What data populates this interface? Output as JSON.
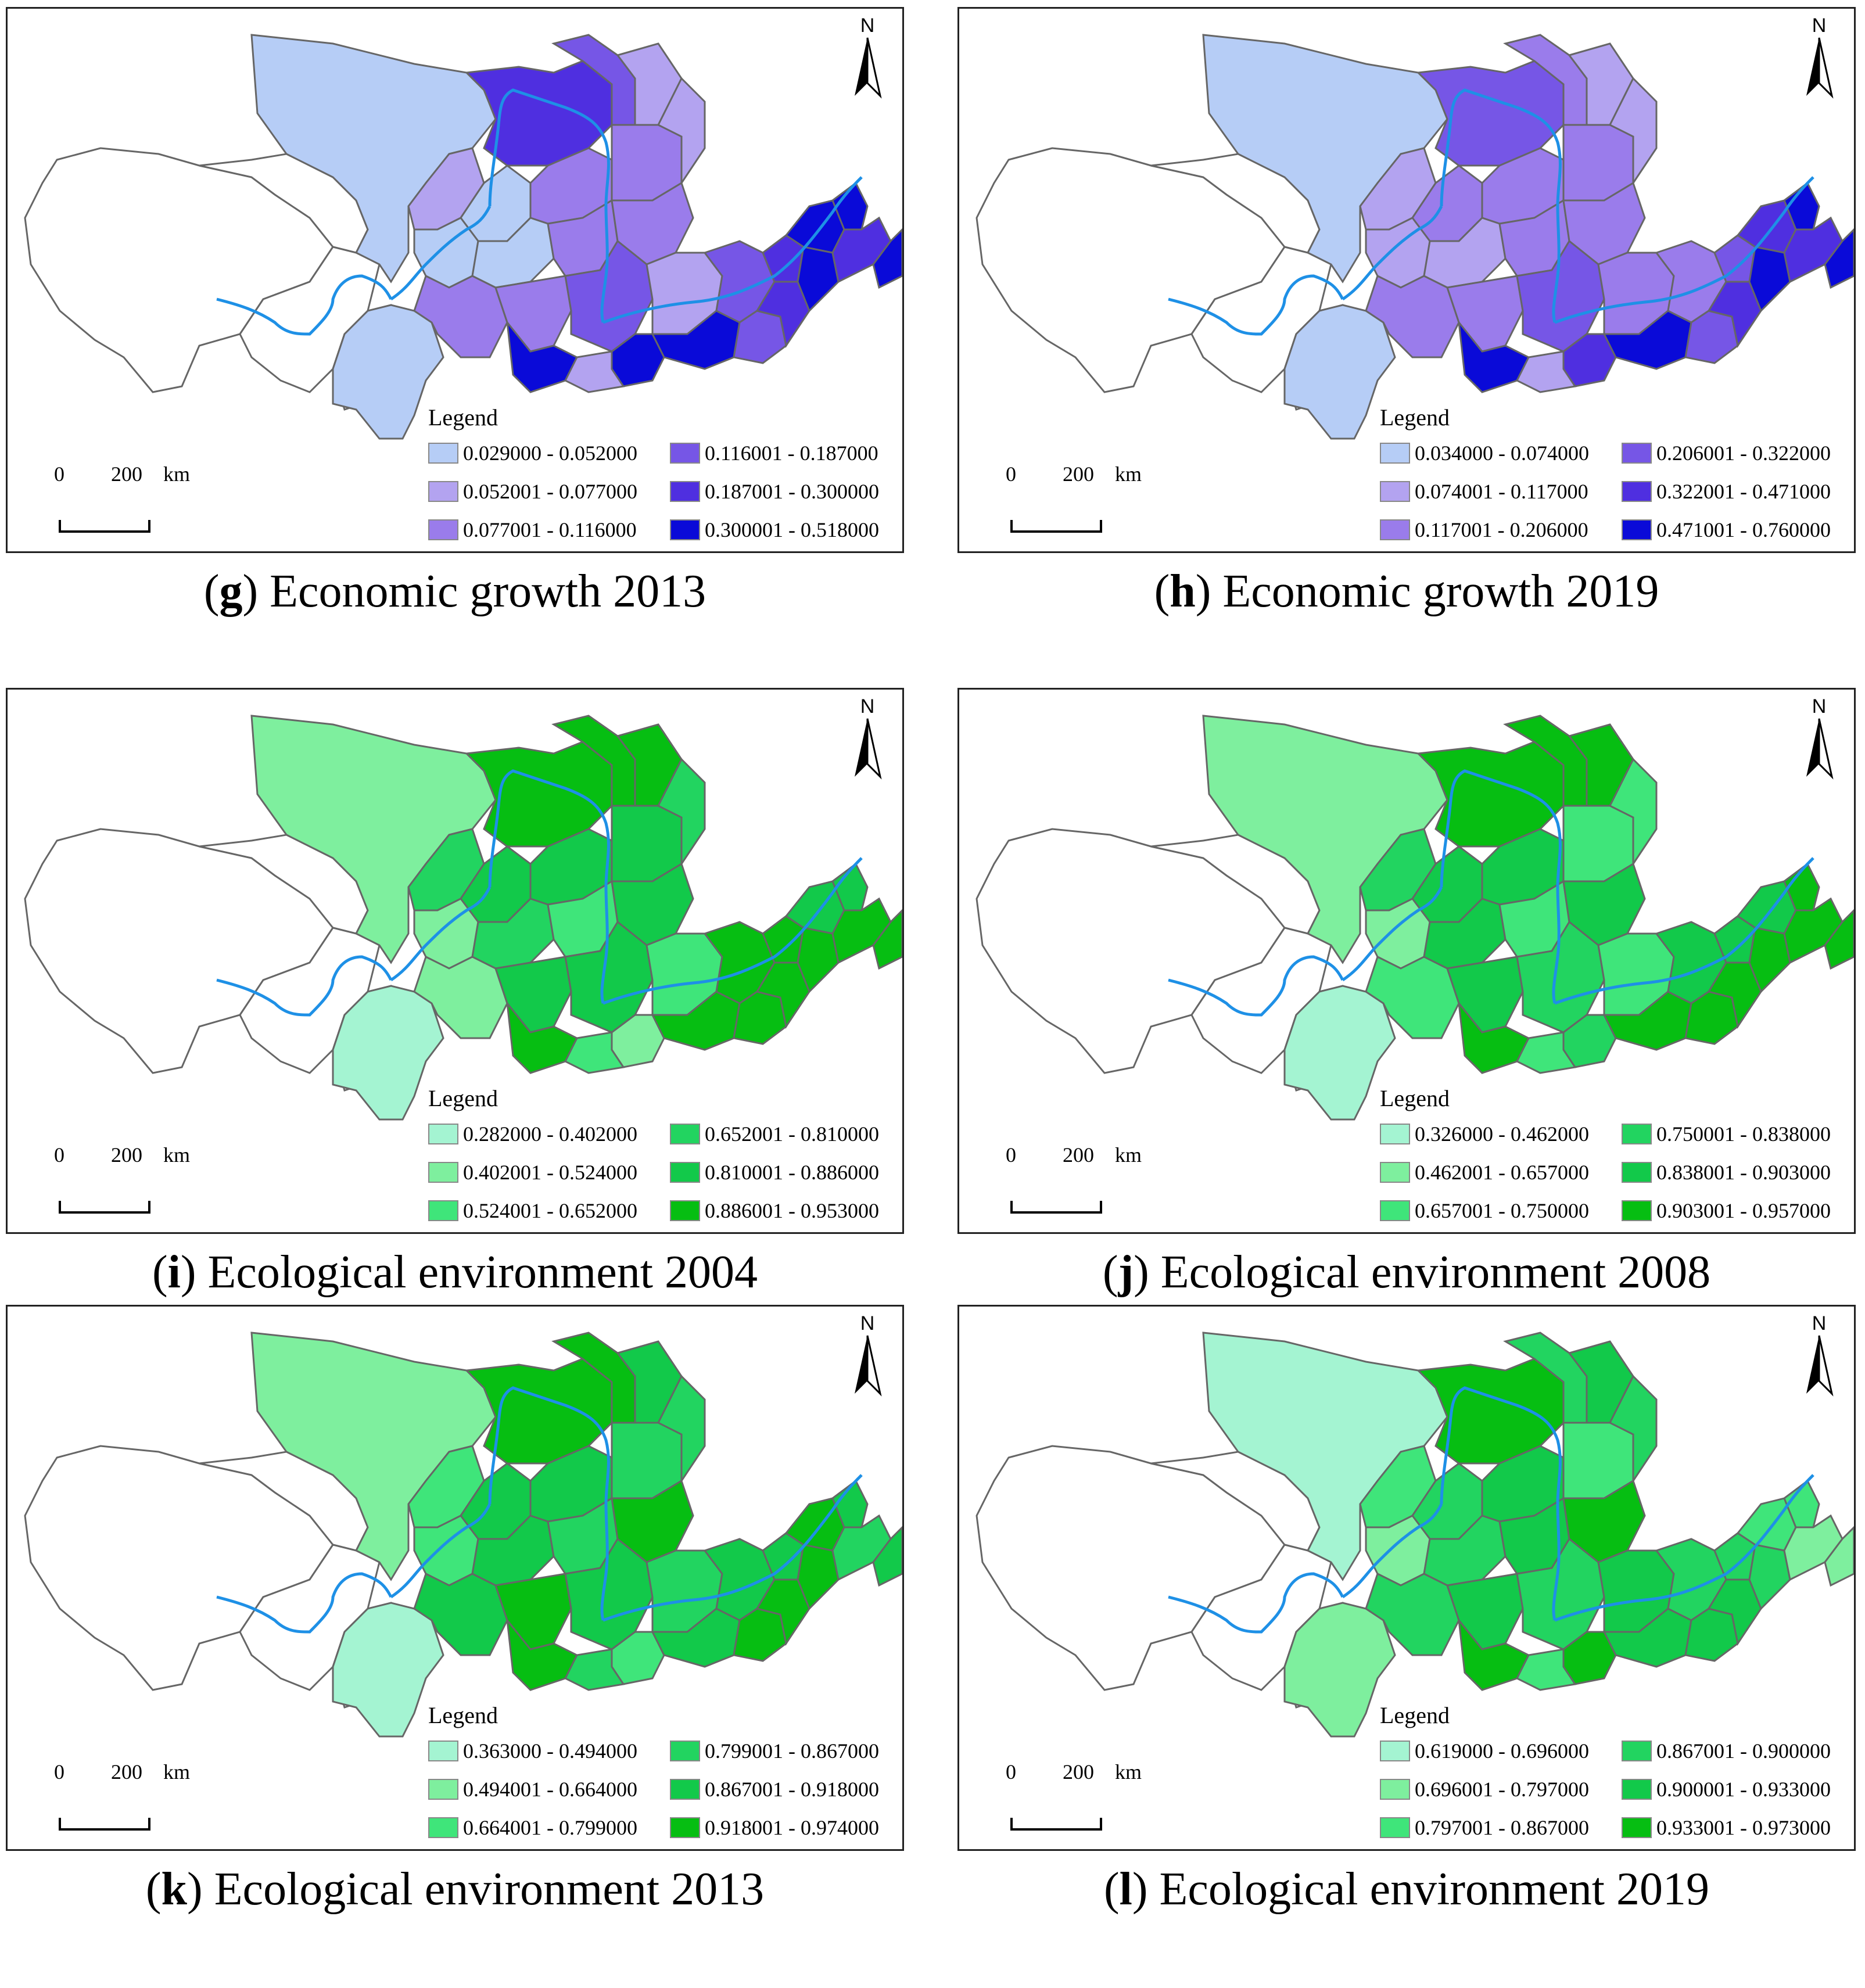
{
  "panels": [
    {
      "letter": "g",
      "title": "Economic growth 2013",
      "legend_title": "Legend",
      "classes": [
        {
          "label": "0.029000 - 0.052000",
          "color": "#b6cdf6"
        },
        {
          "label": "0.052001 - 0.077000",
          "color": "#b3a3f0"
        },
        {
          "label": "0.077001 - 0.116000",
          "color": "#9a7ceb"
        },
        {
          "label": "0.116001 - 0.187000",
          "color": "#7656e6"
        },
        {
          "label": "0.187001 - 0.300000",
          "color": "#4f2fe0"
        },
        {
          "label": "0.300001 - 0.518000",
          "color": "#0a0ad8"
        }
      ]
    },
    {
      "letter": "h",
      "title": "Economic growth 2019",
      "legend_title": "Legend",
      "classes": [
        {
          "label": "0.034000 - 0.074000",
          "color": "#b6cdf6"
        },
        {
          "label": "0.074001 - 0.117000",
          "color": "#b3a3f0"
        },
        {
          "label": "0.117001 - 0.206000",
          "color": "#9a7ceb"
        },
        {
          "label": "0.206001 - 0.322000",
          "color": "#7656e6"
        },
        {
          "label": "0.322001 - 0.471000",
          "color": "#4f2fe0"
        },
        {
          "label": "0.471001 - 0.760000",
          "color": "#0a0ad8"
        }
      ]
    },
    {
      "letter": "i",
      "title": "Ecological environment 2004",
      "legend_title": "Legend",
      "classes": [
        {
          "label": "0.282000 - 0.402000",
          "color": "#a4f4d2"
        },
        {
          "label": "0.402001 - 0.524000",
          "color": "#7eef9e"
        },
        {
          "label": "0.524001 - 0.652000",
          "color": "#3fe57a"
        },
        {
          "label": "0.652001 - 0.810000",
          "color": "#22d460"
        },
        {
          "label": "0.810001 - 0.886000",
          "color": "#12c94a"
        },
        {
          "label": "0.886001 - 0.953000",
          "color": "#06be12"
        }
      ]
    },
    {
      "letter": "j",
      "title": "Ecological environment 2008",
      "legend_title": "Legend",
      "classes": [
        {
          "label": "0.326000 - 0.462000",
          "color": "#a4f4d2"
        },
        {
          "label": "0.462001 - 0.657000",
          "color": "#7eef9e"
        },
        {
          "label": "0.657001 - 0.750000",
          "color": "#3fe57a"
        },
        {
          "label": "0.750001 - 0.838000",
          "color": "#22d460"
        },
        {
          "label": "0.838001 - 0.903000",
          "color": "#12c94a"
        },
        {
          "label": "0.903001 - 0.957000",
          "color": "#06be12"
        }
      ]
    },
    {
      "letter": "k",
      "title": "Ecological environment 2013",
      "legend_title": "Legend",
      "classes": [
        {
          "label": "0.363000 - 0.494000",
          "color": "#a4f4d2"
        },
        {
          "label": "0.494001 - 0.664000",
          "color": "#7eef9e"
        },
        {
          "label": "0.664001 - 0.799000",
          "color": "#3fe57a"
        },
        {
          "label": "0.799001 - 0.867000",
          "color": "#22d460"
        },
        {
          "label": "0.867001 - 0.918000",
          "color": "#12c94a"
        },
        {
          "label": "0.918001 - 0.974000",
          "color": "#06be12"
        }
      ]
    },
    {
      "letter": "l",
      "title": "Ecological environment 2019",
      "legend_title": "Legend",
      "classes": [
        {
          "label": "0.619000 - 0.696000",
          "color": "#a4f4d2"
        },
        {
          "label": "0.696001 - 0.797000",
          "color": "#7eef9e"
        },
        {
          "label": "0.797001 - 0.867000",
          "color": "#3fe57a"
        },
        {
          "label": "0.867001 - 0.900000",
          "color": "#22d460"
        },
        {
          "label": "0.900001 - 0.933000",
          "color": "#12c94a"
        },
        {
          "label": "0.933001 - 0.973000",
          "color": "#06be12"
        }
      ]
    }
  ],
  "scale": {
    "zero": "0",
    "value": "200",
    "unit": "km"
  },
  "north_label": "N",
  "river_color": "#1e90e6",
  "boundary_color": "#666666"
}
